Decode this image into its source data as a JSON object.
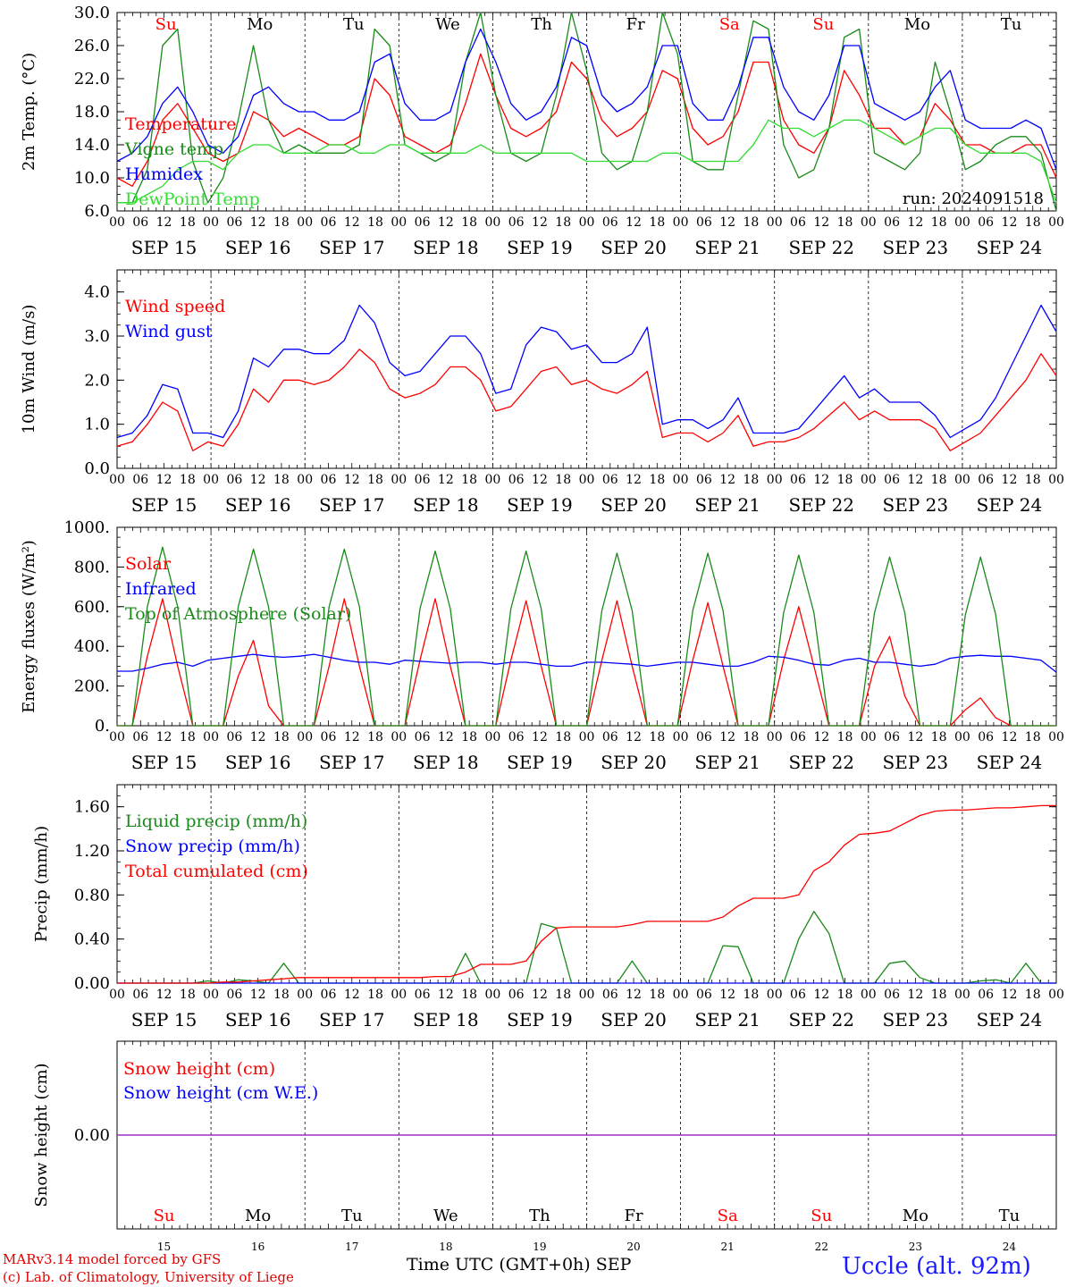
{
  "footer": {
    "model": "MARv3.14 model forced by GFS",
    "lab": "(c) Lab. of Climatology, University of Liege",
    "xlabel": "Time UTC (GMT+0h)",
    "month": "SEP",
    "station": "Uccle (alt. 92m)"
  },
  "time_axis": {
    "hour_ticks": [
      "00",
      "06",
      "12",
      "18"
    ],
    "end_tick": "00",
    "dates": [
      "SEP 15",
      "SEP 16",
      "SEP 17",
      "SEP 18",
      "SEP 19",
      "SEP 20",
      "SEP 21",
      "SEP 22",
      "SEP 23",
      "SEP 24"
    ],
    "weekdays": [
      "Su",
      "Mo",
      "Tu",
      "We",
      "Th",
      "Fr",
      "Sa",
      "Su",
      "Mo",
      "Tu"
    ],
    "weekend_flags": [
      true,
      false,
      false,
      false,
      false,
      false,
      true,
      true,
      false,
      false
    ],
    "day_numbers": [
      "15",
      "16",
      "17",
      "18",
      "19",
      "20",
      "21",
      "22",
      "23",
      "24"
    ]
  },
  "colors": {
    "red": "#ff0000",
    "green": "#1a8a1a",
    "blue": "#0000ff",
    "lime": "#33dd33",
    "purple": "#8a2be2",
    "weekend": "#ff0000",
    "weekday": "#000000"
  },
  "chart_data": [
    {
      "type": "line",
      "ylabel": "2m Temp. (°C)",
      "ylim": [
        6,
        30
      ],
      "yticks": [
        "6.0",
        "10.0",
        "14.0",
        "18.0",
        "22.0",
        "26.0",
        "30.0"
      ],
      "annotation": "run: 2024091518",
      "series_x_hours_step": 6,
      "series": [
        {
          "name": "Temperature",
          "color": "red",
          "values": [
            10,
            9,
            12,
            17,
            19,
            16,
            13,
            12,
            13,
            18,
            17,
            15,
            16,
            15,
            14,
            14,
            15,
            22,
            20,
            15,
            14,
            13,
            14,
            19,
            25,
            20,
            16,
            15,
            16,
            18,
            24,
            22,
            17,
            15,
            16,
            18,
            23,
            22,
            16,
            14,
            15,
            18,
            24,
            24,
            17,
            14,
            13,
            16,
            23,
            20,
            16,
            16,
            14,
            15,
            19,
            17,
            14,
            14,
            13,
            13,
            14,
            14,
            10
          ]
        },
        {
          "name": "Vigne temp",
          "color": "green",
          "values": [
            7,
            7,
            11,
            26,
            28,
            12,
            7,
            10,
            17,
            26,
            17,
            13,
            14,
            13,
            13,
            13,
            14,
            28,
            26,
            14,
            13,
            12,
            13,
            24,
            30,
            20,
            13,
            12,
            13,
            20,
            30,
            23,
            13,
            11,
            12,
            18,
            30,
            25,
            12,
            11,
            11,
            20,
            29,
            28,
            14,
            10,
            11,
            16,
            27,
            28,
            13,
            12,
            11,
            13,
            24,
            18,
            11,
            12,
            14,
            15,
            15,
            13,
            6
          ]
        },
        {
          "name": "Humidex",
          "color": "blue",
          "values": [
            12,
            13,
            15,
            19,
            21,
            18,
            14,
            13,
            15,
            20,
            21,
            19,
            18,
            18,
            17,
            17,
            18,
            24,
            25,
            19,
            17,
            17,
            18,
            24,
            28,
            24,
            19,
            17,
            18,
            21,
            27,
            26,
            20,
            18,
            19,
            21,
            26,
            26,
            19,
            17,
            17,
            21,
            27,
            27,
            21,
            18,
            17,
            20,
            26,
            26,
            19,
            18,
            17,
            18,
            21,
            23,
            17,
            16,
            16,
            16,
            17,
            16,
            11
          ]
        },
        {
          "name": "DewPoint Temp",
          "color": "lime",
          "values": [
            7,
            7,
            8,
            9,
            11,
            12,
            12,
            11,
            13,
            14,
            14,
            13,
            13,
            13,
            14,
            14,
            13,
            13,
            14,
            14,
            13,
            13,
            13,
            13,
            14,
            13,
            13,
            13,
            13,
            13,
            13,
            12,
            12,
            12,
            12,
            12,
            13,
            13,
            12,
            12,
            12,
            12,
            14,
            17,
            16,
            16,
            15,
            16,
            17,
            17,
            16,
            15,
            14,
            15,
            16,
            16,
            14,
            13,
            13,
            13,
            13,
            12,
            7
          ]
        }
      ]
    },
    {
      "type": "line",
      "ylabel": "10m Wind (m/s)",
      "ylim": [
        0,
        4.5
      ],
      "yticks": [
        "0.0",
        "1.0",
        "2.0",
        "3.0",
        "4.0"
      ],
      "series_x_hours_step": 6,
      "series": [
        {
          "name": "Wind speed",
          "color": "red",
          "values": [
            0.5,
            0.6,
            1.0,
            1.5,
            1.3,
            0.4,
            0.6,
            0.5,
            1.0,
            1.8,
            1.5,
            2.0,
            2.0,
            1.9,
            2.0,
            2.3,
            2.7,
            2.4,
            1.8,
            1.6,
            1.7,
            1.9,
            2.3,
            2.3,
            2.0,
            1.3,
            1.4,
            1.8,
            2.2,
            2.3,
            1.9,
            2.0,
            1.8,
            1.7,
            1.9,
            2.2,
            0.7,
            0.8,
            0.8,
            0.6,
            0.8,
            1.2,
            0.5,
            0.6,
            0.6,
            0.7,
            0.9,
            1.2,
            1.5,
            1.1,
            1.3,
            1.1,
            1.1,
            1.1,
            0.9,
            0.4,
            0.6,
            0.8,
            1.2,
            1.6,
            2.0,
            2.6,
            2.1
          ]
        },
        {
          "name": "Wind gust",
          "color": "blue",
          "values": [
            0.7,
            0.8,
            1.2,
            1.9,
            1.8,
            0.8,
            0.8,
            0.7,
            1.3,
            2.5,
            2.3,
            2.7,
            2.7,
            2.6,
            2.6,
            2.9,
            3.7,
            3.3,
            2.4,
            2.1,
            2.2,
            2.6,
            3.0,
            3.0,
            2.6,
            1.7,
            1.8,
            2.8,
            3.2,
            3.1,
            2.7,
            2.8,
            2.4,
            2.4,
            2.6,
            3.2,
            1.0,
            1.1,
            1.1,
            0.9,
            1.1,
            1.6,
            0.8,
            0.8,
            0.8,
            0.9,
            1.3,
            1.7,
            2.1,
            1.6,
            1.8,
            1.5,
            1.5,
            1.5,
            1.2,
            0.7,
            0.9,
            1.1,
            1.6,
            2.3,
            3.0,
            3.7,
            3.1
          ]
        }
      ]
    },
    {
      "type": "line",
      "ylabel": "Energy fluxes (W/m²)",
      "ylim": [
        0,
        1000
      ],
      "yticks": [
        "0.",
        "200.",
        "400.",
        "600.",
        "800.",
        "1000."
      ],
      "series_x_hours_step": 6,
      "series": [
        {
          "name": "Solar",
          "color": "red",
          "values": [
            0,
            0,
            350,
            640,
            300,
            0,
            0,
            0,
            250,
            430,
            100,
            0,
            0,
            0,
            300,
            640,
            300,
            0,
            0,
            0,
            330,
            640,
            300,
            0,
            0,
            0,
            330,
            630,
            300,
            0,
            0,
            0,
            330,
            630,
            300,
            0,
            0,
            0,
            330,
            620,
            300,
            0,
            0,
            0,
            330,
            600,
            300,
            0,
            0,
            0,
            300,
            450,
            150,
            0,
            0,
            0,
            80,
            140,
            40,
            0,
            0,
            0,
            0
          ]
        },
        {
          "name": "Infrared",
          "color": "blue",
          "values": [
            275,
            275,
            290,
            310,
            320,
            300,
            330,
            340,
            350,
            360,
            350,
            345,
            350,
            360,
            345,
            330,
            320,
            320,
            310,
            330,
            325,
            320,
            315,
            320,
            320,
            310,
            320,
            320,
            310,
            300,
            300,
            320,
            320,
            315,
            310,
            300,
            310,
            320,
            320,
            310,
            300,
            300,
            320,
            350,
            345,
            330,
            310,
            305,
            330,
            340,
            320,
            320,
            310,
            300,
            310,
            340,
            350,
            355,
            350,
            350,
            340,
            330,
            270
          ]
        },
        {
          "name": "Top of Atmosphere (Solar)",
          "color": "green",
          "values": [
            0,
            0,
            600,
            900,
            600,
            0,
            0,
            0,
            600,
            890,
            600,
            0,
            0,
            0,
            600,
            890,
            600,
            0,
            0,
            0,
            590,
            880,
            590,
            0,
            0,
            0,
            590,
            880,
            590,
            0,
            0,
            0,
            580,
            870,
            580,
            0,
            0,
            0,
            580,
            870,
            580,
            0,
            0,
            0,
            570,
            860,
            570,
            0,
            0,
            0,
            570,
            850,
            570,
            0,
            0,
            0,
            560,
            850,
            560,
            0,
            0,
            0,
            0
          ]
        }
      ]
    },
    {
      "type": "line",
      "ylabel": "Precip (mm/h)",
      "ylim": [
        0,
        1.8
      ],
      "yticks": [
        "0.00",
        "0.40",
        "0.80",
        "1.20",
        "1.60"
      ],
      "series_x_hours_step": 6,
      "series": [
        {
          "name": "Liquid precip (mm/h)",
          "color": "green",
          "values": [
            0,
            0,
            0,
            0,
            0,
            0,
            0.02,
            0,
            0.03,
            0.02,
            0,
            0.18,
            0,
            0,
            0,
            0,
            0,
            0,
            0,
            0,
            0,
            0,
            0,
            0.27,
            0,
            0,
            0,
            0,
            0.54,
            0.5,
            0,
            0,
            0,
            0,
            0.2,
            0,
            0,
            0,
            0,
            0,
            0.34,
            0.33,
            0,
            0,
            0,
            0.4,
            0.65,
            0.45,
            0,
            0,
            0,
            0.18,
            0.2,
            0.05,
            0,
            0,
            0,
            0.02,
            0.03,
            0,
            0.18,
            0,
            0
          ]
        },
        {
          "name": "Snow precip (mm/h)",
          "color": "blue",
          "values": [
            0,
            0,
            0,
            0,
            0,
            0,
            0,
            0,
            0,
            0,
            0,
            0,
            0,
            0,
            0,
            0,
            0,
            0,
            0,
            0,
            0,
            0,
            0,
            0,
            0,
            0,
            0,
            0,
            0,
            0,
            0,
            0,
            0,
            0,
            0,
            0,
            0,
            0,
            0,
            0,
            0,
            0,
            0,
            0,
            0,
            0,
            0,
            0,
            0,
            0,
            0,
            0,
            0,
            0,
            0,
            0,
            0,
            0,
            0,
            0,
            0,
            0,
            0
          ]
        },
        {
          "name": "Total cumulated (cm)",
          "color": "red",
          "values": [
            0,
            0,
            0,
            0,
            0,
            0,
            0,
            0.01,
            0.01,
            0.02,
            0.03,
            0.04,
            0.05,
            0.05,
            0.05,
            0.05,
            0.05,
            0.05,
            0.05,
            0.05,
            0.05,
            0.06,
            0.06,
            0.1,
            0.17,
            0.17,
            0.17,
            0.2,
            0.38,
            0.5,
            0.51,
            0.51,
            0.51,
            0.51,
            0.53,
            0.56,
            0.56,
            0.56,
            0.56,
            0.56,
            0.6,
            0.7,
            0.77,
            0.77,
            0.77,
            0.8,
            1.02,
            1.1,
            1.25,
            1.35,
            1.36,
            1.38,
            1.45,
            1.52,
            1.56,
            1.57,
            1.57,
            1.58,
            1.59,
            1.59,
            1.6,
            1.61,
            1.61
          ]
        }
      ]
    },
    {
      "type": "line",
      "ylabel": "Snow height (cm)",
      "ylim": [
        -1,
        1
      ],
      "yticks": [
        "0.00"
      ],
      "series_x_hours_step": 6,
      "series": [
        {
          "name": "Snow height (cm)",
          "color": "red",
          "values": [
            0,
            0
          ]
        },
        {
          "name": "Snow height (cm W.E.)",
          "color": "blue",
          "values": [
            0,
            0
          ]
        }
      ]
    }
  ]
}
